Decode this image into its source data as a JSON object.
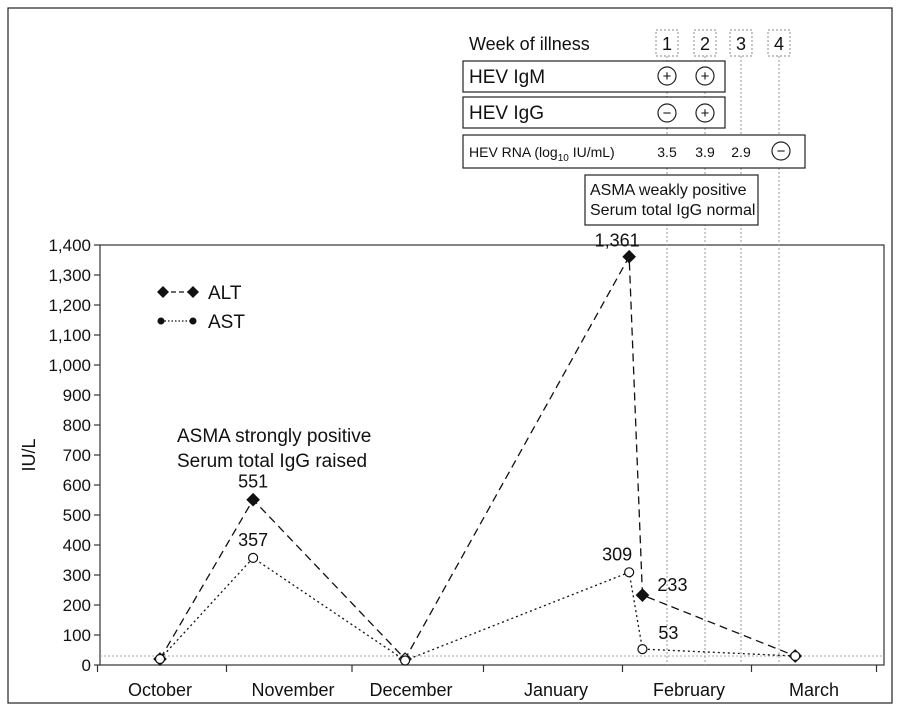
{
  "chart_data": {
    "type": "line",
    "ylabel": "IU/L",
    "ylim": [
      0,
      1400
    ],
    "yticks": [
      0,
      100,
      200,
      300,
      400,
      500,
      600,
      700,
      800,
      900,
      1000,
      1100,
      1200,
      1300,
      1400
    ],
    "ytick_labels": [
      "0",
      "100",
      "200",
      "300",
      "400",
      "500",
      "600",
      "700",
      "800",
      "900",
      "1,000",
      "1,100",
      "1,200",
      "1,300",
      "1,400"
    ],
    "categories": [
      "October",
      "November",
      "December",
      "January",
      "February",
      "March"
    ],
    "reference_line": 30,
    "grid": false,
    "legend_position": "top-left",
    "series": [
      {
        "name": "ALT",
        "marker": "diamond",
        "line_style": "dashed",
        "x": [
          0.0,
          0.7,
          1.95,
          3.55,
          3.65,
          4.85
        ],
        "values": [
          20,
          551,
          20,
          1361,
          233,
          30
        ],
        "labels": [
          "",
          "551",
          "",
          "1,361",
          "233",
          ""
        ]
      },
      {
        "name": "AST",
        "marker": "circle",
        "line_style": "dotted",
        "x": [
          0.0,
          0.7,
          1.95,
          3.55,
          3.65,
          4.85
        ],
        "values": [
          20,
          357,
          15,
          309,
          53,
          30
        ],
        "labels": [
          "",
          "357",
          "",
          "309",
          "53",
          ""
        ]
      }
    ],
    "annotations": {
      "october_note": [
        "ASMA strongly positive",
        "Serum total IgG raised"
      ],
      "february_note": [
        "ASMA weakly positive",
        "Serum total IgG normal"
      ]
    }
  },
  "illness_table": {
    "header": "Week of illness",
    "weeks": [
      "1",
      "2",
      "3",
      "4"
    ],
    "igm_label": "HEV IgM",
    "igm_values": [
      "+",
      "+"
    ],
    "igg_label": "HEV IgG",
    "igg_values": [
      "−",
      "+"
    ],
    "rna_label_main": "HEV RNA (log",
    "rna_label_sub": "10",
    "rna_label_end": " IU/mL)",
    "rna_values": [
      "3.5",
      "3.9",
      "2.9"
    ],
    "rna_final": "−"
  }
}
